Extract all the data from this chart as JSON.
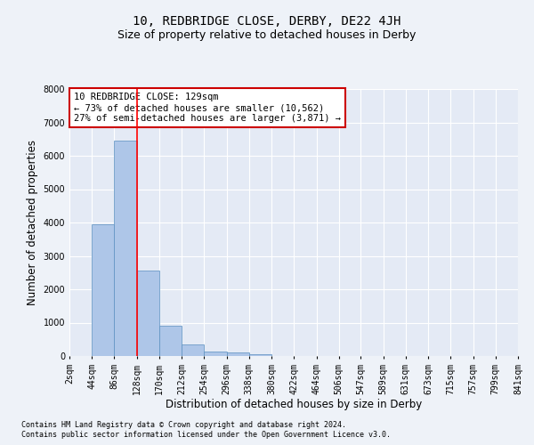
{
  "title": "10, REDBRIDGE CLOSE, DERBY, DE22 4JH",
  "subtitle": "Size of property relative to detached houses in Derby",
  "xlabel": "Distribution of detached houses by size in Derby",
  "ylabel": "Number of detached properties",
  "footer_line1": "Contains HM Land Registry data © Crown copyright and database right 2024.",
  "footer_line2": "Contains public sector information licensed under the Open Government Licence v3.0.",
  "annotation_line1": "10 REDBRIDGE CLOSE: 129sqm",
  "annotation_line2": "← 73% of detached houses are smaller (10,562)",
  "annotation_line3": "27% of semi-detached houses are larger (3,871) →",
  "property_size": 129,
  "bar_edges": [
    2,
    44,
    86,
    128,
    170,
    212,
    254,
    296,
    338,
    380,
    422,
    464,
    506,
    547,
    589,
    631,
    673,
    715,
    757,
    799,
    841
  ],
  "bar_heights": [
    0,
    3950,
    6450,
    2550,
    900,
    350,
    130,
    100,
    50,
    0,
    0,
    0,
    0,
    0,
    0,
    0,
    0,
    0,
    0,
    0
  ],
  "bar_color": "#aec6e8",
  "bar_edge_color": "#5a8fc0",
  "red_line_x": 129,
  "ylim": [
    0,
    8000
  ],
  "yticks": [
    0,
    1000,
    2000,
    3000,
    4000,
    5000,
    6000,
    7000,
    8000
  ],
  "tick_labels": [
    "2sqm",
    "44sqm",
    "86sqm",
    "128sqm",
    "170sqm",
    "212sqm",
    "254sqm",
    "296sqm",
    "338sqm",
    "380sqm",
    "422sqm",
    "464sqm",
    "506sqm",
    "547sqm",
    "589sqm",
    "631sqm",
    "673sqm",
    "715sqm",
    "757sqm",
    "799sqm",
    "841sqm"
  ],
  "background_color": "#eef2f8",
  "plot_bg_color": "#e4eaf5",
  "grid_color": "#ffffff",
  "annotation_box_color": "#ffffff",
  "annotation_box_edgecolor": "#cc0000",
  "title_fontsize": 10,
  "subtitle_fontsize": 9,
  "axis_label_fontsize": 8.5,
  "tick_fontsize": 7,
  "annotation_fontsize": 7.5,
  "footer_fontsize": 6
}
